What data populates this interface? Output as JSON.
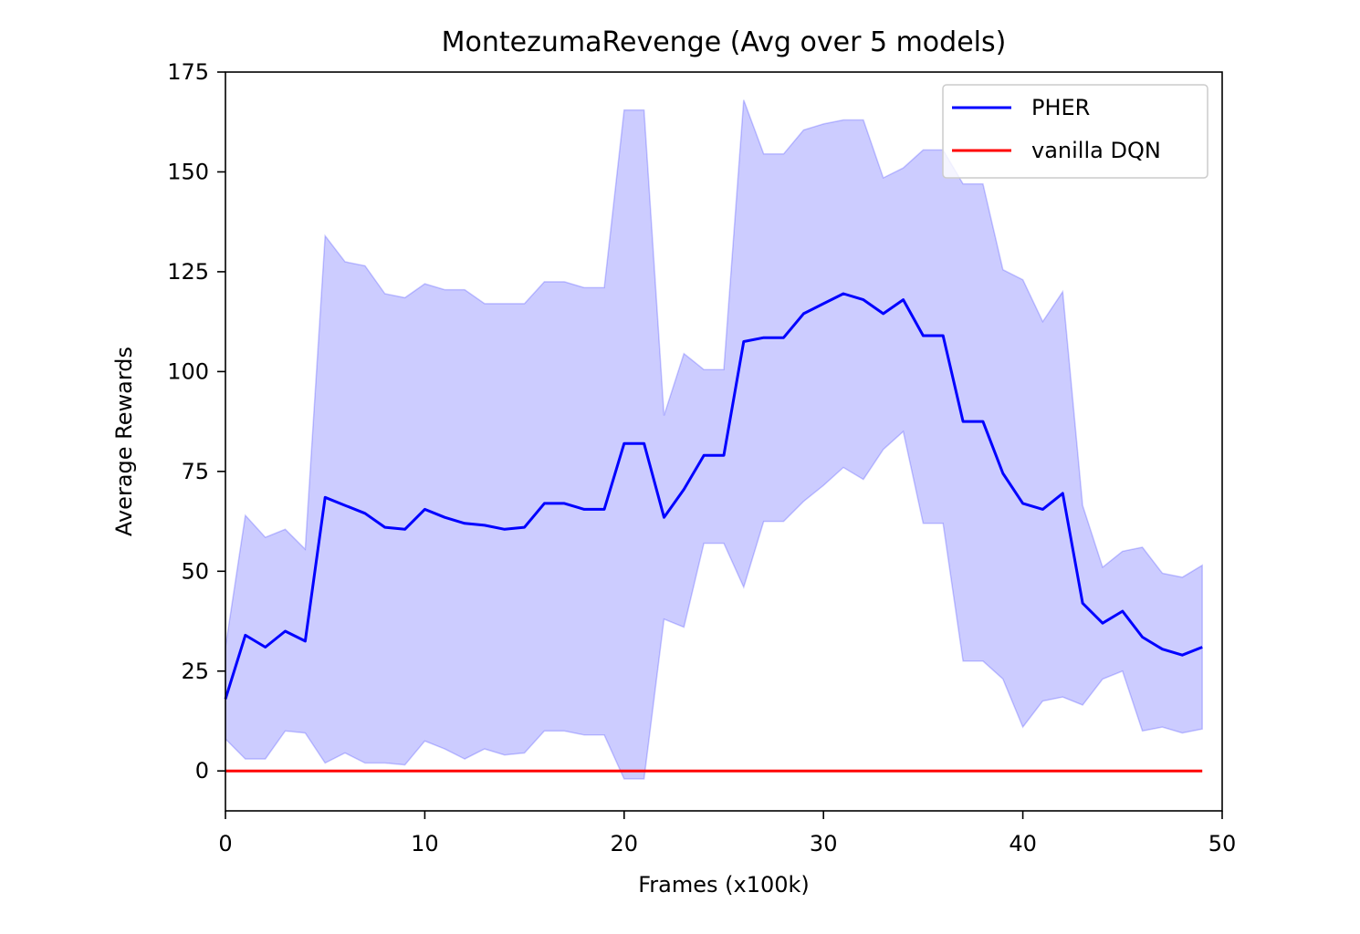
{
  "chart_data": {
    "type": "line",
    "title": "MontezumaRevenge (Avg over 5 models)",
    "xlabel": "Frames (x100k)",
    "ylabel": "Average Rewards",
    "xlim": [
      0,
      50
    ],
    "ylim": [
      -10,
      175
    ],
    "x_ticks": [
      0,
      10,
      20,
      30,
      40,
      50
    ],
    "y_ticks": [
      0,
      25,
      50,
      75,
      100,
      125,
      150,
      175
    ],
    "grid": false,
    "legend_position": "top-right",
    "x": [
      0,
      1,
      2,
      3,
      4,
      5,
      6,
      7,
      8,
      9,
      10,
      11,
      12,
      13,
      14,
      15,
      16,
      17,
      18,
      19,
      20,
      21,
      22,
      23,
      24,
      25,
      26,
      27,
      28,
      29,
      30,
      31,
      32,
      33,
      34,
      35,
      36,
      37,
      38,
      39,
      40,
      41,
      42,
      43,
      44,
      45,
      46,
      47,
      48,
      49
    ],
    "series": [
      {
        "name": "PHER",
        "color": "#0000ff",
        "band_color": "#0000ff",
        "band_opacity": 0.2,
        "values": [
          18,
          34,
          31,
          35,
          32.5,
          68.5,
          66.5,
          64.5,
          61,
          60.5,
          65.5,
          63.5,
          62,
          61.5,
          60.5,
          61,
          67,
          67,
          65.5,
          65.5,
          82,
          82,
          63.5,
          70.5,
          79,
          79,
          107.5,
          108.5,
          108.5,
          114.5,
          117,
          119.5,
          118,
          114.5,
          118,
          109,
          109,
          87.5,
          87.5,
          74.5,
          67,
          65.5,
          69.5,
          42,
          37,
          40,
          33.5,
          30.5,
          29,
          31
        ],
        "lower": [
          8,
          3,
          3,
          10,
          9.5,
          2,
          4.5,
          2,
          2,
          1.5,
          7.5,
          5.5,
          3,
          5.5,
          4,
          4.5,
          10,
          10,
          9,
          9,
          -2,
          -2,
          38,
          36,
          57,
          57,
          46,
          62.5,
          62.5,
          67.5,
          71.5,
          76,
          73,
          80.5,
          85,
          62,
          62,
          27.5,
          27.5,
          23,
          11,
          17.5,
          18.5,
          16.5,
          23,
          25,
          10,
          11,
          9.5,
          10.5
        ],
        "upper": [
          31,
          64,
          58.5,
          60.5,
          55.5,
          134,
          127.5,
          126.5,
          119.5,
          118.5,
          122,
          120.5,
          120.5,
          117,
          117,
          117,
          122.5,
          122.5,
          121,
          121,
          165.5,
          165.5,
          89,
          104.5,
          100.5,
          100.5,
          168,
          154.5,
          154.5,
          160.5,
          162,
          163,
          163,
          148.5,
          151,
          155.5,
          155.5,
          147,
          147,
          125.5,
          123,
          112.5,
          120,
          66.5,
          51,
          55,
          56,
          49.5,
          48.5,
          51.5
        ]
      },
      {
        "name": "vanilla DQN",
        "color": "#ff0000",
        "values": [
          0,
          0,
          0,
          0,
          0,
          0,
          0,
          0,
          0,
          0,
          0,
          0,
          0,
          0,
          0,
          0,
          0,
          0,
          0,
          0,
          0,
          0,
          0,
          0,
          0,
          0,
          0,
          0,
          0,
          0,
          0,
          0,
          0,
          0,
          0,
          0,
          0,
          0,
          0,
          0,
          0,
          0,
          0,
          0,
          0,
          0,
          0,
          0,
          0,
          0
        ]
      }
    ]
  }
}
